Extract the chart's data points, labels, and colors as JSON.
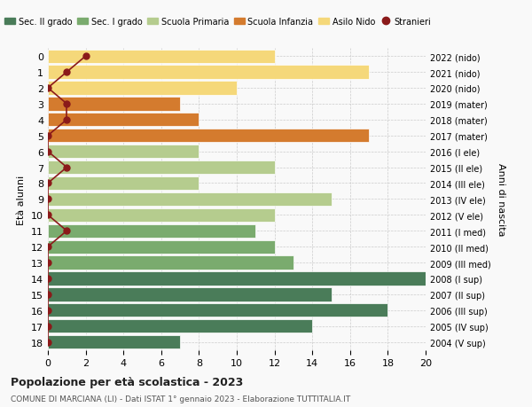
{
  "ages": [
    18,
    17,
    16,
    15,
    14,
    13,
    12,
    11,
    10,
    9,
    8,
    7,
    6,
    5,
    4,
    3,
    2,
    1,
    0
  ],
  "right_labels": [
    "2004 (V sup)",
    "2005 (IV sup)",
    "2006 (III sup)",
    "2007 (II sup)",
    "2008 (I sup)",
    "2009 (III med)",
    "2010 (II med)",
    "2011 (I med)",
    "2012 (V ele)",
    "2013 (IV ele)",
    "2014 (III ele)",
    "2015 (II ele)",
    "2016 (I ele)",
    "2017 (mater)",
    "2018 (mater)",
    "2019 (mater)",
    "2020 (nido)",
    "2021 (nido)",
    "2022 (nido)"
  ],
  "bar_values": [
    7,
    14,
    18,
    15,
    20,
    13,
    12,
    11,
    12,
    15,
    8,
    12,
    8,
    17,
    8,
    7,
    10,
    17,
    12
  ],
  "bar_colors": [
    "#4a7c59",
    "#4a7c59",
    "#4a7c59",
    "#4a7c59",
    "#4a7c59",
    "#7aab6e",
    "#7aab6e",
    "#7aab6e",
    "#b5cc8e",
    "#b5cc8e",
    "#b5cc8e",
    "#b5cc8e",
    "#b5cc8e",
    "#d47b2e",
    "#d47b2e",
    "#d47b2e",
    "#f5d87a",
    "#f5d87a",
    "#f5d87a"
  ],
  "stranieri_values": [
    0,
    0,
    0,
    0,
    0,
    0,
    0,
    1,
    0,
    0,
    0,
    1,
    0,
    0,
    1,
    1,
    0,
    1,
    2
  ],
  "legend_labels": [
    "Sec. II grado",
    "Sec. I grado",
    "Scuola Primaria",
    "Scuola Infanzia",
    "Asilo Nido",
    "Stranieri"
  ],
  "legend_colors": [
    "#4a7c59",
    "#7aab6e",
    "#b5cc8e",
    "#d47b2e",
    "#f5d87a",
    "#8b1a1a"
  ],
  "ylabel_left": "Età alunni",
  "ylabel_right": "Anni di nascita",
  "title": "Popolazione per età scolastica - 2023",
  "subtitle": "COMUNE DI MARCIANA (LI) - Dati ISTAT 1° gennaio 2023 - Elaborazione TUTTITALIA.IT",
  "xlim": [
    0,
    20
  ],
  "xticks": [
    0,
    2,
    4,
    6,
    8,
    10,
    12,
    14,
    16,
    18,
    20
  ],
  "background_color": "#f9f9f9",
  "grid_color": "#cccccc"
}
